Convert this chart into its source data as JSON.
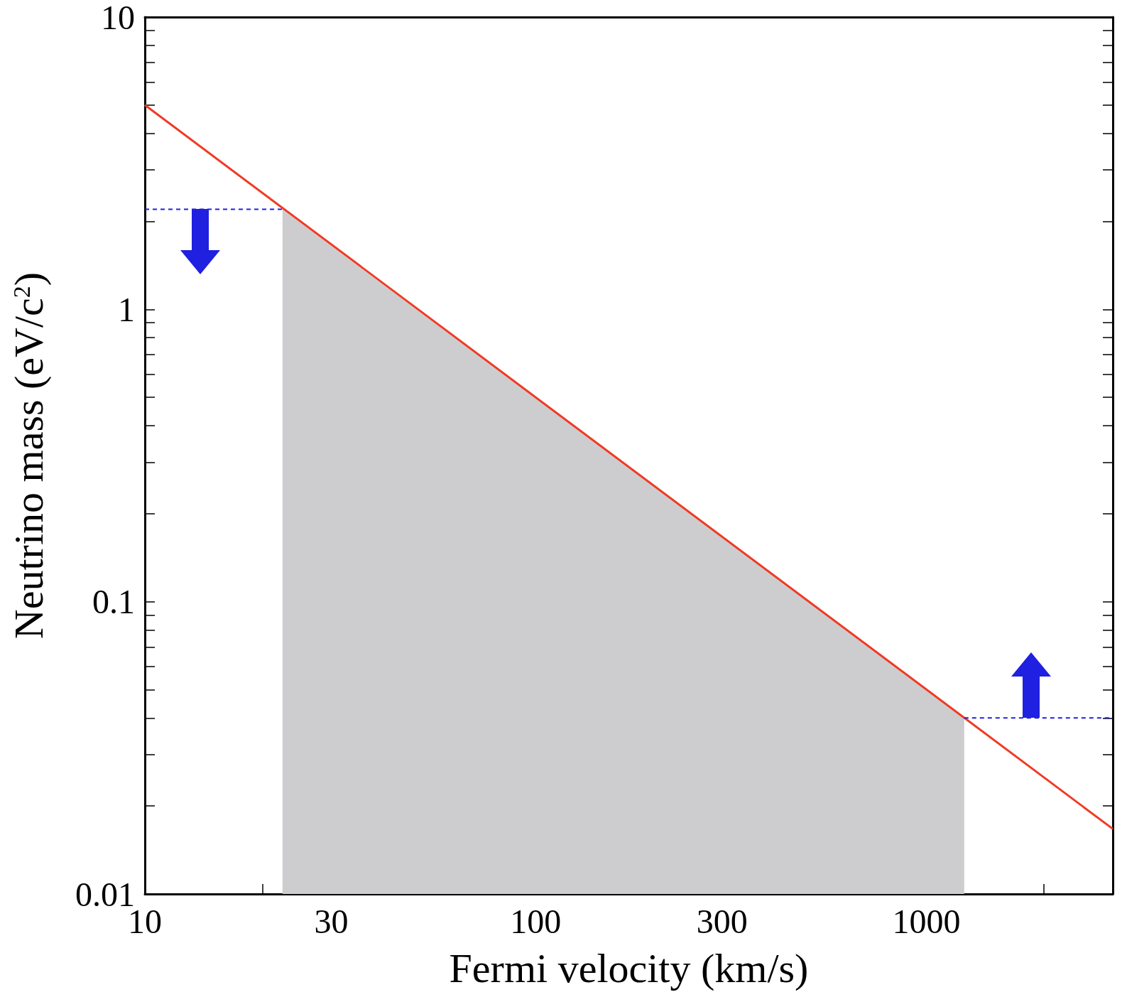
{
  "chart_data": {
    "type": "line",
    "xlabel": "Fermi velocity (km/s)",
    "ylabel": "Neutrino mass (eV/c$^{2}$)",
    "log": "xy",
    "grid": false,
    "marker": "none",
    "xlim": [
      10,
      3000
    ],
    "xticks": [
      10,
      {
        "value": 20,
        "label": null
      },
      30,
      {
        "value": 40,
        "label": null
      },
      {
        "value": 50,
        "label": null
      },
      {
        "value": 60,
        "label": null
      },
      {
        "value": 70,
        "label": null
      },
      {
        "value": 80,
        "label": null
      },
      {
        "value": 90,
        "label": null
      },
      100,
      {
        "value": 200,
        "label": null
      },
      300,
      {
        "value": 400,
        "label": null
      },
      {
        "value": 500,
        "label": null
      },
      {
        "value": 600,
        "label": null
      },
      {
        "value": 700,
        "label": null
      },
      {
        "value": 800,
        "label": null
      },
      {
        "value": 900,
        "label": null
      },
      1000,
      {
        "value": 2000,
        "label": null
      }
    ],
    "ylim": [
      0.01,
      10
    ],
    "yticks": [
      {
        "value": 0.01,
        "label": "0.01"
      },
      {
        "value": 0.02,
        "label": null
      },
      {
        "value": 0.03,
        "label": null
      },
      {
        "value": 0.04,
        "label": null
      },
      {
        "value": 0.05,
        "label": null
      },
      {
        "value": 0.06,
        "label": null
      },
      {
        "value": 0.07,
        "label": null
      },
      {
        "value": 0.08,
        "label": null
      },
      {
        "value": 0.09,
        "label": null
      },
      {
        "value": 0.1,
        "label": "0.1"
      },
      {
        "value": 0.2,
        "label": null
      },
      {
        "value": 0.3,
        "label": null
      },
      {
        "value": 0.4,
        "label": null
      },
      {
        "value": 0.5,
        "label": null
      },
      {
        "value": 0.6,
        "label": null
      },
      {
        "value": 0.7,
        "label": null
      },
      {
        "value": 0.8,
        "label": null
      },
      {
        "value": 0.9,
        "label": null
      },
      1,
      {
        "value": 2,
        "label": null
      },
      {
        "value": 3,
        "label": null
      },
      {
        "value": 4,
        "label": null
      },
      {
        "value": 5,
        "label": null
      },
      {
        "value": 6,
        "label": null
      },
      {
        "value": 7,
        "label": null
      },
      {
        "value": 8,
        "label": null
      },
      {
        "value": 9,
        "label": null
      },
      10
    ],
    "series": [
      {
        "type": "area",
        "color": "#cdcdd0",
        "x": [
          22.5,
          1250
        ],
        "values": [
          2.2,
          0.04
        ]
      },
      {
        "type": "line",
        "color": "#f03a22",
        "x": [
          10,
          3000
        ],
        "values": [
          5,
          0.0167
        ]
      },
      {
        "type": "line",
        "color": "#2020e0",
        "line_style": "dashed",
        "x": [
          10,
          22.5
        ],
        "values": [
          2.2,
          2.2
        ]
      },
      {
        "type": "line",
        "color": "#2020e0",
        "line_style": "dashed",
        "x": [
          1250,
          3000
        ],
        "values": [
          0.04,
          0.04
        ]
      }
    ]
  }
}
